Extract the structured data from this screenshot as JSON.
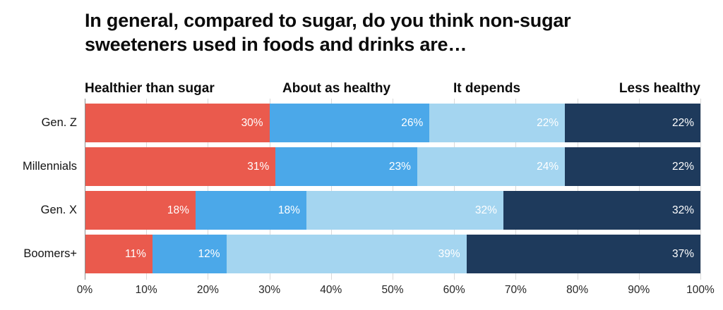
{
  "title": "In general, compared to sugar, do you think non-sugar sweeteners used in foods and drinks are…",
  "chart_data": {
    "type": "bar",
    "orientation": "horizontal",
    "stacked": true,
    "grid": true,
    "legend_position": "top",
    "value_suffix": "%",
    "categories": [
      "Gen. Z",
      "Millennials",
      "Gen. X",
      "Boomers+"
    ],
    "series": [
      {
        "name": "Healthier than sugar",
        "color": "#EA5A4D",
        "values": [
          30,
          31,
          18,
          11
        ]
      },
      {
        "name": "About as healthy",
        "color": "#4BA8E9",
        "values": [
          26,
          23,
          18,
          12
        ]
      },
      {
        "name": "It depends",
        "color": "#A4D5F0",
        "values": [
          22,
          24,
          32,
          39
        ]
      },
      {
        "name": "Less healthy",
        "color": "#1E3A5C",
        "values": [
          22,
          22,
          32,
          37
        ]
      }
    ],
    "x_axis": {
      "min": 0,
      "max": 100,
      "tick_step": 10,
      "ticks": [
        "0%",
        "10%",
        "20%",
        "30%",
        "40%",
        "50%",
        "60%",
        "70%",
        "80%",
        "90%",
        "100%"
      ]
    }
  },
  "colors": {
    "background": "#ffffff",
    "title_text": "#0b0b0b",
    "gridline": "#d9d9d9",
    "axis_line": "#8f8f8f",
    "bar_value_text": "#ffffff"
  }
}
